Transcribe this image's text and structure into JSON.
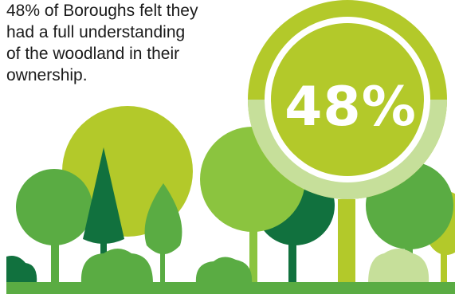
{
  "stat": {
    "caption_lines": [
      "48% of Boroughs felt they",
      "had a full understanding",
      "of the woodland in their",
      "ownership."
    ],
    "value_label": "48%",
    "value": 48
  },
  "colors": {
    "lime": "#b3c92a",
    "pale_lime": "#c6df9a",
    "mid_green": "#8bc43f",
    "green": "#5aac43",
    "dark_green": "#11713e",
    "ground": "#5aac43"
  },
  "icons": [
    "deciduous-tree-icon",
    "conifer-tree-icon",
    "bush-icon",
    "gauge-ring-icon"
  ]
}
